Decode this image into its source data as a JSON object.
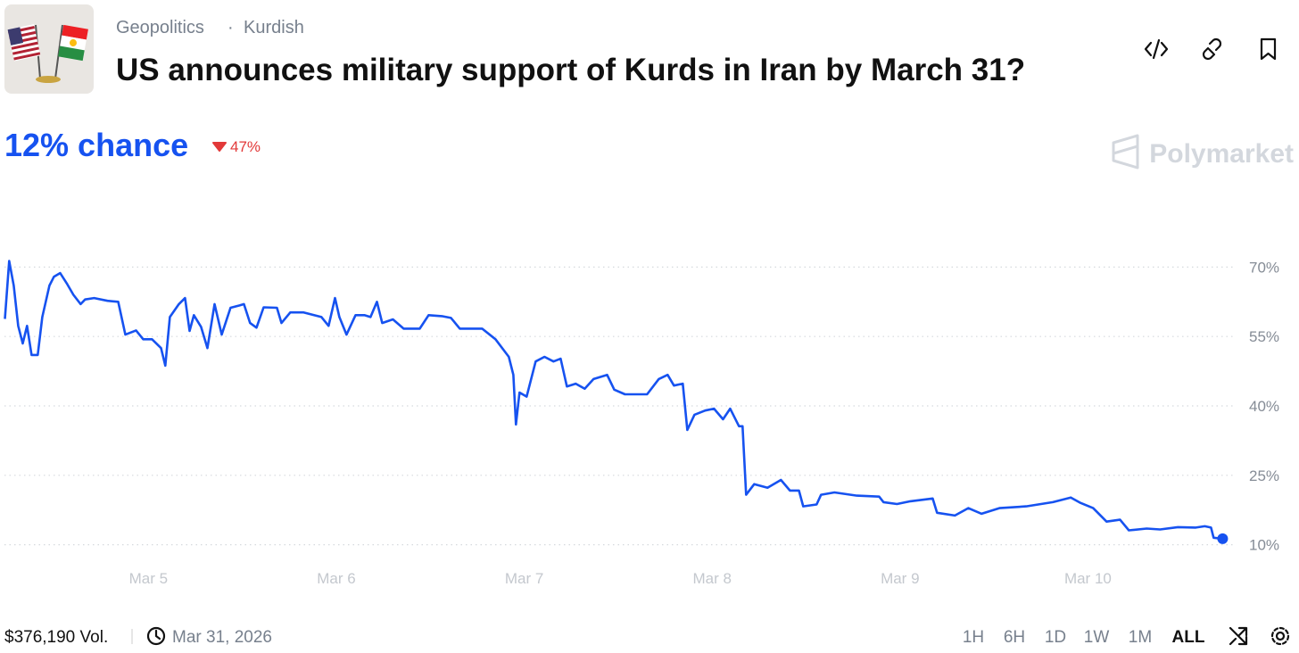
{
  "header": {
    "category": "Geopolitics",
    "tag": "Kurdish",
    "title": "US announces military support of Kurds in Iran by March 31?"
  },
  "probability": "12% chance",
  "change": "47%",
  "brand": "Polymarket",
  "footer": {
    "volume": "$376,190 Vol.",
    "end_date": "Mar 31, 2026",
    "ranges": [
      "1H",
      "6H",
      "1D",
      "1W",
      "1M",
      "ALL"
    ],
    "selected_range": "ALL"
  },
  "chart_data": {
    "type": "line",
    "color": "#1652f0",
    "grid": true,
    "xlim": [
      4.21,
      10.81
    ],
    "ylim": [
      8,
      72
    ],
    "xticks": [
      {
        "value": 5,
        "label": "Mar 5"
      },
      {
        "value": 6,
        "label": "Mar 6"
      },
      {
        "value": 7,
        "label": "Mar 7"
      },
      {
        "value": 8,
        "label": "Mar 8"
      },
      {
        "value": 9,
        "label": "Mar 9"
      },
      {
        "value": 10,
        "label": "Mar 10"
      }
    ],
    "yticks": [
      {
        "value": 10,
        "label": "10%"
      },
      {
        "value": 25,
        "label": "25%"
      },
      {
        "value": 40,
        "label": "40%"
      },
      {
        "value": 55,
        "label": "55%"
      },
      {
        "value": 70,
        "label": "70%"
      }
    ],
    "x": [
      4.236,
      4.259,
      4.283,
      4.307,
      4.331,
      4.354,
      4.378,
      4.411,
      4.435,
      4.473,
      4.497,
      4.53,
      4.568,
      4.601,
      4.639,
      4.663,
      4.711,
      4.782,
      4.839,
      4.877,
      4.934,
      4.972,
      5.019,
      5.067,
      5.09,
      5.114,
      5.162,
      5.195,
      5.219,
      5.242,
      5.28,
      5.314,
      5.352,
      5.39,
      5.437,
      5.485,
      5.508,
      5.541,
      5.575,
      5.613,
      5.684,
      5.708,
      5.755,
      5.826,
      5.921,
      5.959,
      5.993,
      6.016,
      6.054,
      6.102,
      6.149,
      6.182,
      6.216,
      6.244,
      6.301,
      6.358,
      6.444,
      6.491,
      6.562,
      6.61,
      6.657,
      6.776,
      6.847,
      6.918,
      6.942,
      6.956,
      6.975,
      7.013,
      7.061,
      7.108,
      7.156,
      7.194,
      7.227,
      7.274,
      7.322,
      7.369,
      7.441,
      7.479,
      7.536,
      7.654,
      7.716,
      7.763,
      7.797,
      7.844,
      7.868,
      7.906,
      7.963,
      8.01,
      8.058,
      8.096,
      8.143,
      8.162,
      8.181,
      8.224,
      8.295,
      8.366,
      8.414,
      8.462,
      8.485,
      8.556,
      8.58,
      8.651,
      8.77,
      8.889,
      8.912,
      8.984,
      9.055,
      9.174,
      9.197,
      9.292,
      9.363,
      9.434,
      9.529,
      9.672,
      9.814,
      9.909,
      9.957,
      10.028,
      10.099,
      10.171,
      10.218,
      10.313,
      10.384,
      10.479,
      10.574,
      10.622,
      10.655,
      10.669,
      10.717
    ],
    "values": [
      58.8,
      71.3,
      66,
      57.3,
      53.5,
      57.3,
      51,
      51,
      59.2,
      66,
      67.9,
      68.7,
      66.3,
      64,
      62,
      63,
      63.3,
      62.7,
      62.5,
      55.4,
      56.3,
      54.4,
      54.4,
      52.5,
      48.7,
      59.2,
      62,
      63.3,
      56.2,
      59.6,
      57.1,
      52.5,
      62,
      55.4,
      61.2,
      61.7,
      62,
      57.9,
      56.9,
      61.3,
      61.2,
      57.9,
      60.2,
      60.2,
      59.2,
      57.3,
      63.3,
      59.2,
      55.4,
      59.6,
      59.6,
      59.2,
      62.5,
      57.9,
      58.7,
      56.7,
      56.7,
      59.6,
      59.4,
      59,
      56.7,
      56.7,
      54.4,
      50.6,
      46.7,
      36,
      42.9,
      42,
      49.6,
      50.6,
      49.6,
      50.2,
      44.2,
      44.8,
      43.7,
      45.8,
      46.7,
      43.5,
      42.5,
      42.5,
      45.8,
      46.7,
      44.4,
      44.8,
      34.8,
      38.1,
      39,
      39.4,
      37.1,
      39.4,
      35.6,
      35.6,
      20.8,
      23.1,
      22.3,
      24,
      21.7,
      21.7,
      18.3,
      18.7,
      20.8,
      21.3,
      20.6,
      20.4,
      19.2,
      18.8,
      19.4,
      20,
      16.9,
      16.3,
      17.9,
      16.7,
      17.9,
      18.3,
      19.2,
      20.2,
      19.1,
      17.9,
      15,
      15.4,
      13.1,
      13.5,
      13.3,
      13.8,
      13.7,
      14,
      13.7,
      11.5,
      11.3
    ]
  }
}
